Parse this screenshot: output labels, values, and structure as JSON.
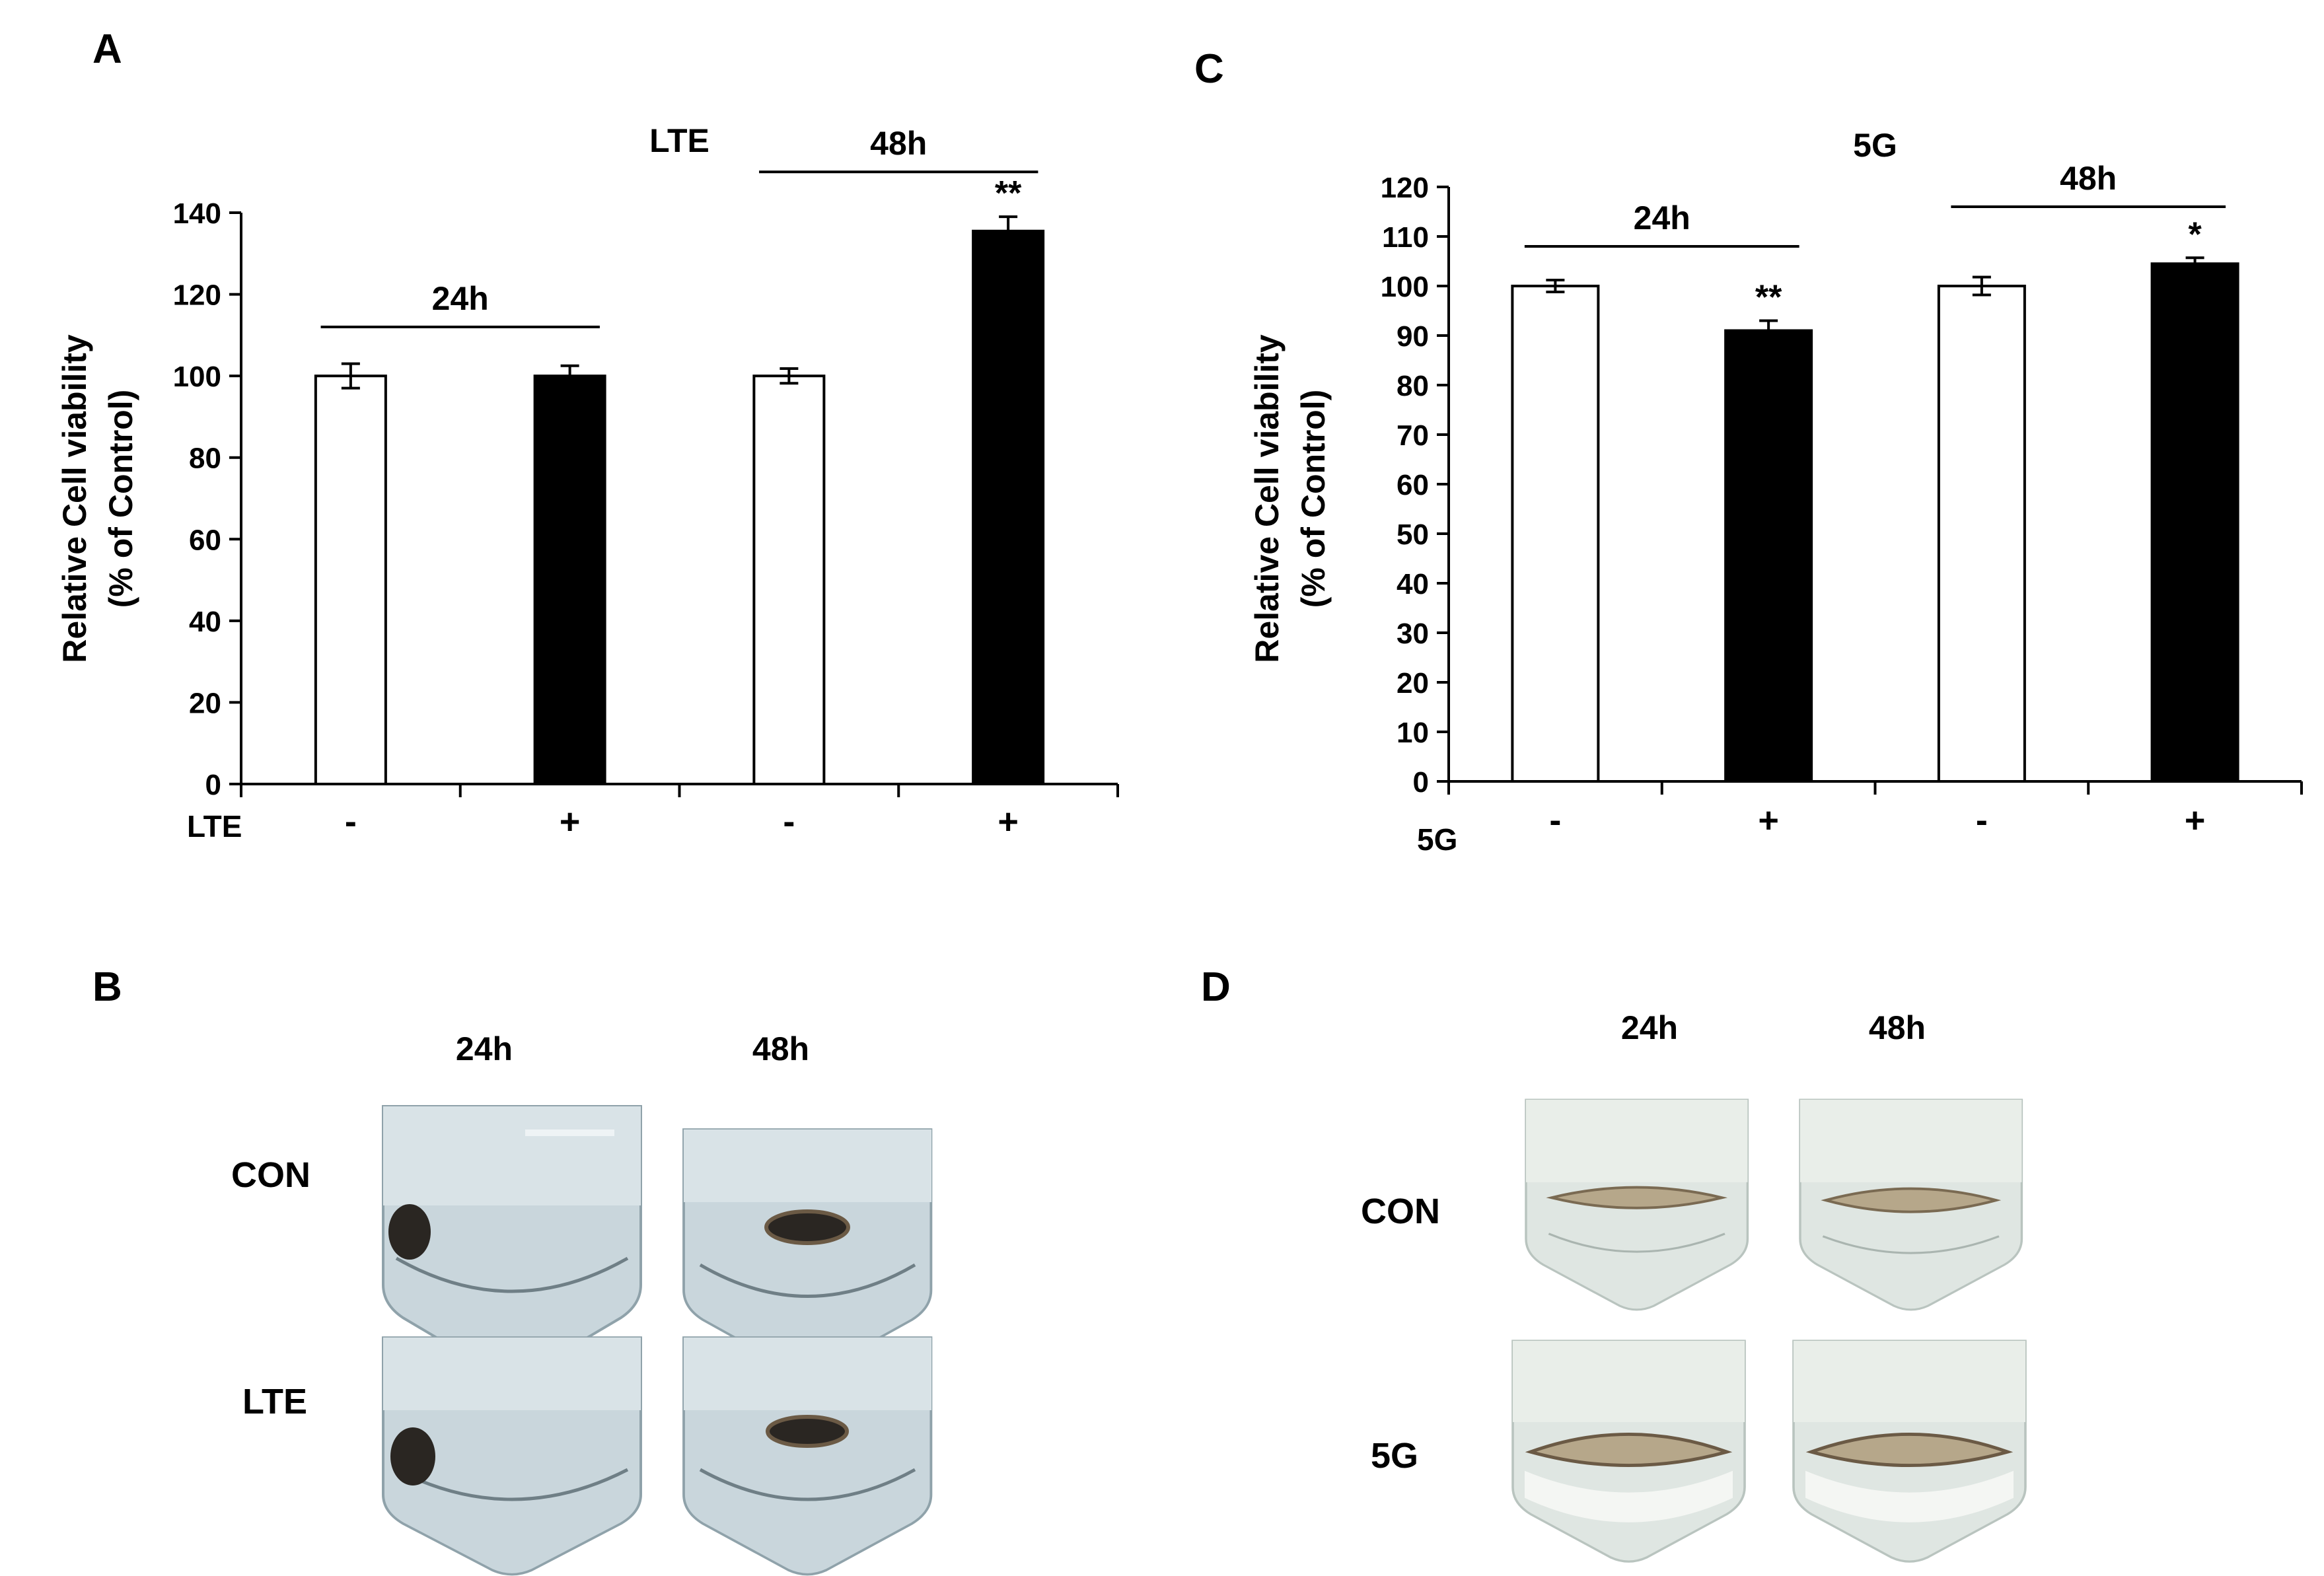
{
  "panels": {
    "a": {
      "letter": "A"
    },
    "b": {
      "letter": "B",
      "col_24": "24h",
      "col_48": "48h",
      "row_con": "CON",
      "row_treat": "LTE"
    },
    "c": {
      "letter": "C"
    },
    "d": {
      "letter": "D",
      "col_24": "24h",
      "col_48": "48h",
      "row_con": "CON",
      "row_treat": "5G"
    }
  },
  "chart_data": [
    {
      "id": "A",
      "type": "bar",
      "title": "LTE",
      "ylabel": [
        "Relative Cell viability",
        "(% of Control)"
      ],
      "ylim": [
        0,
        140
      ],
      "yticks": [
        0,
        20,
        40,
        60,
        80,
        100,
        120,
        140
      ],
      "xrow_label": "LTE",
      "categories": [
        "-",
        "+",
        "-",
        "+"
      ],
      "values": [
        100,
        100,
        100,
        135.5
      ],
      "errors": [
        3.0,
        2.5,
        1.8,
        3.5
      ],
      "fills": [
        "#ffffff",
        "#000000",
        "#ffffff",
        "#000000"
      ],
      "significance": [
        "",
        "",
        "",
        "**"
      ],
      "groups": [
        {
          "label": "24h",
          "span": [
            0,
            1
          ],
          "level": 112
        },
        {
          "label": "48h",
          "span": [
            2,
            3
          ],
          "level": 150
        }
      ]
    },
    {
      "id": "C",
      "type": "bar",
      "title": "5G",
      "ylabel": [
        "Relative Cell viability",
        "(% of Control)"
      ],
      "ylim": [
        0,
        120
      ],
      "yticks": [
        0,
        10,
        20,
        30,
        40,
        50,
        60,
        70,
        80,
        90,
        100,
        110,
        120
      ],
      "xrow_label": "5G",
      "categories": [
        "-",
        "+",
        "-",
        "+"
      ],
      "values": [
        100,
        91,
        100,
        104.5
      ],
      "errors": [
        1.2,
        2.0,
        1.8,
        1.2
      ],
      "fills": [
        "#ffffff",
        "#000000",
        "#ffffff",
        "#000000"
      ],
      "significance": [
        "",
        "**",
        "",
        "*"
      ],
      "groups": [
        {
          "label": "24h",
          "span": [
            0,
            1
          ],
          "level": 108
        },
        {
          "label": "48h",
          "span": [
            2,
            3
          ],
          "level": 116
        }
      ]
    }
  ],
  "colors": {
    "axis": "#000000",
    "tube_glass": "#c9d6dc",
    "tube_liquid": "#eef3f5",
    "pellet_dark": "#2a2622",
    "pellet_brown": "#6b5a45",
    "medium_d": "#b6a78a"
  }
}
